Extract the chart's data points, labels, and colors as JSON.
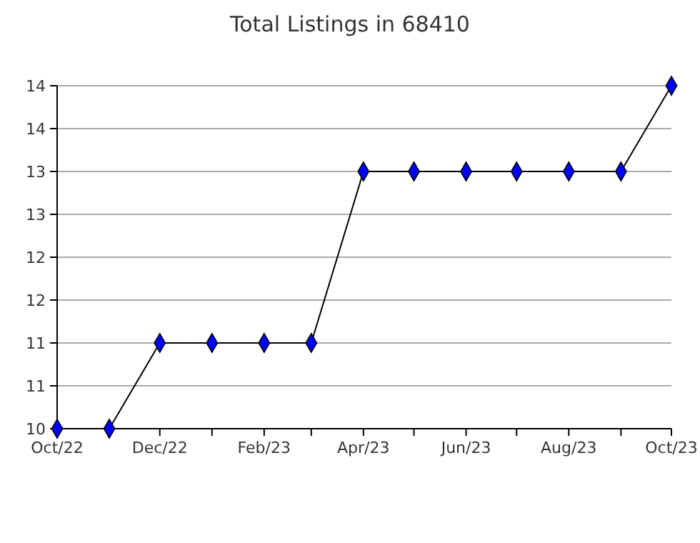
{
  "chart_data": {
    "type": "line",
    "title": "Total Listings in 68410",
    "x": [
      "2022-10",
      "2022-11",
      "2022-12",
      "2023-01",
      "2023-02",
      "2023-03",
      "2023-04",
      "2023-05",
      "2023-06",
      "2023-07",
      "2023-08",
      "2023-09",
      "2023-10"
    ],
    "series": [
      {
        "color": "#0000ff",
        "values": [
          10,
          10,
          11,
          11,
          11,
          11,
          13,
          13,
          13,
          13,
          13,
          13,
          14
        ]
      }
    ],
    "xlim": [
      "2022-10",
      "2023-10"
    ],
    "xticks": [
      {
        "value": "2022-10",
        "label": "Oct/22"
      },
      {
        "value": "2022-11",
        "label": null
      },
      {
        "value": "2022-12",
        "label": "Dec/22"
      },
      {
        "value": "2023-01",
        "label": null
      },
      {
        "value": "2023-02",
        "label": "Feb/23"
      },
      {
        "value": "2023-03",
        "label": null
      },
      {
        "value": "2023-04",
        "label": "Apr/23"
      },
      {
        "value": "2023-05",
        "label": null
      },
      {
        "value": "2023-06",
        "label": "Jun/23"
      },
      {
        "value": "2023-07",
        "label": null
      },
      {
        "value": "2023-08",
        "label": "Aug/23"
      },
      {
        "value": "2023-09",
        "label": null
      },
      {
        "value": "2023-10",
        "label": "Oct/23"
      }
    ],
    "ylim": [
      10,
      14
    ],
    "yticks": [
      10,
      {
        "value": 10.5,
        "label": "11"
      },
      11,
      {
        "value": 11.5,
        "label": "12"
      },
      12,
      {
        "value": 12.5,
        "label": "13"
      },
      13,
      {
        "value": 13.5,
        "label": "14"
      },
      14
    ],
    "grid": "y",
    "marker": "diamond",
    "line_style": "solid"
  }
}
